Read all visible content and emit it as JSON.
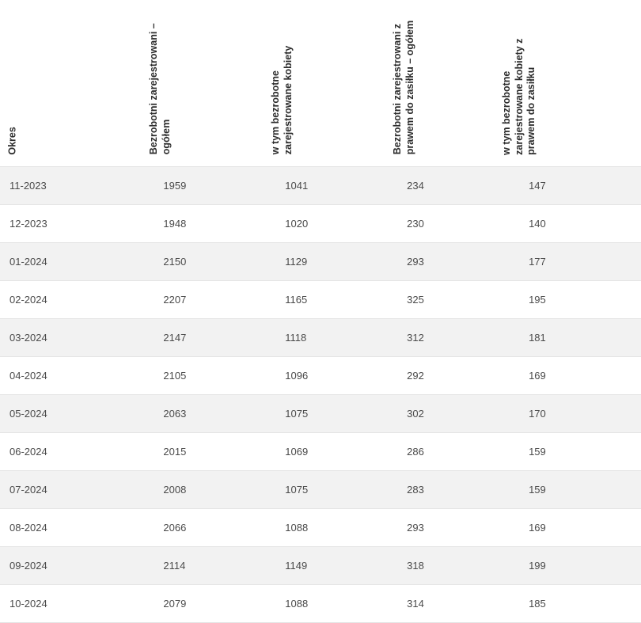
{
  "table": {
    "columns": [
      "Okres",
      "Bezrobotni zarejestrowani – ogółem",
      "w tym bezrobotne zarejestrowane kobiety",
      "Bezrobotni zarejestrowani z prawem do zasiłku – ogółem",
      "w tym bezrobotne zarejestrowane kobiety z prawem do zasiłku"
    ],
    "rows": [
      [
        "11-2023",
        "1959",
        "1041",
        "234",
        "147"
      ],
      [
        "12-2023",
        "1948",
        "1020",
        "230",
        "140"
      ],
      [
        "01-2024",
        "2150",
        "1129",
        "293",
        "177"
      ],
      [
        "02-2024",
        "2207",
        "1165",
        "325",
        "195"
      ],
      [
        "03-2024",
        "2147",
        "1118",
        "312",
        "181"
      ],
      [
        "04-2024",
        "2105",
        "1096",
        "292",
        "169"
      ],
      [
        "05-2024",
        "2063",
        "1075",
        "302",
        "170"
      ],
      [
        "06-2024",
        "2015",
        "1069",
        "286",
        "159"
      ],
      [
        "07-2024",
        "2008",
        "1075",
        "283",
        "159"
      ],
      [
        "08-2024",
        "2066",
        "1088",
        "293",
        "169"
      ],
      [
        "09-2024",
        "2114",
        "1149",
        "318",
        "199"
      ],
      [
        "10-2024",
        "2079",
        "1088",
        "314",
        "185"
      ]
    ],
    "header_bg": "#ffffff",
    "row_odd_bg": "#f2f2f2",
    "row_even_bg": "#ffffff",
    "border_color": "#e5e5e5",
    "text_color": "#4a4a4a",
    "header_text_color": "#2c2c2c",
    "font_size_body": 13,
    "font_size_header": 12.5
  }
}
